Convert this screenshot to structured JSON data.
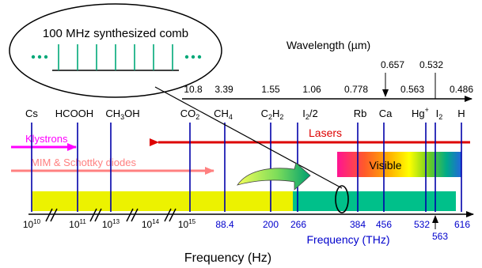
{
  "comb": {
    "title": "100 MHz synthesized comb"
  },
  "wavelength": {
    "title": "Wavelength (µm)",
    "labels": [
      "10.8",
      "3.39",
      "1.55",
      "1.06",
      "0.778",
      "0.563",
      "0.486"
    ],
    "upper_labels": [
      "0.657",
      "0.532"
    ]
  },
  "species": {
    "Cs": "Cs",
    "HCOOH": "HCOOH",
    "CH3OH_main": "CH",
    "CH3OH_sub": "3",
    "CH3OH_tail": "OH",
    "CO2_main": "CO",
    "CO2_sub": "2",
    "CH4_main": "CH",
    "CH4_sub": "4",
    "C2H2_a": "C",
    "C2H2_sub1": "2",
    "C2H2_b": "H",
    "C2H2_sub2": "2",
    "I2half_a": "I",
    "I2half_sub": "2",
    "I2half_b": "/2",
    "Rb": "Rb",
    "Ca": "Ca",
    "Hg_main": "Hg",
    "Hg_sup": "+",
    "I2_main": "I",
    "I2_sub": "2",
    "H": "H"
  },
  "sources": {
    "lasers": "Lasers",
    "klystrons": "Klystrons",
    "mim": "MIM & Schottky diodes",
    "visible": "Visible"
  },
  "hz_labels": [
    {
      "base": "10",
      "exp": "10"
    },
    {
      "base": "10",
      "exp": "11"
    },
    {
      "base": "10",
      "exp": "13"
    },
    {
      "base": "10",
      "exp": "14"
    },
    {
      "base": "10",
      "exp": "15"
    }
  ],
  "thz_labels": [
    "88.4",
    "200",
    "266",
    "384",
    "456",
    "532",
    "563",
    "616"
  ],
  "axis": {
    "thz_title": "Frequency (THz)",
    "hz_title": "Frequency (Hz)"
  },
  "colors": {
    "axis": "#000000",
    "blue_line": "#0000aa",
    "comb_line": "#00a878",
    "lasers": "#dd0000",
    "klystrons": "#ff00ff",
    "mim": "#ff8080",
    "yellow_bar": "#ecf200",
    "teal_bar": "#00c08a",
    "thz_text": "#0000cc"
  }
}
